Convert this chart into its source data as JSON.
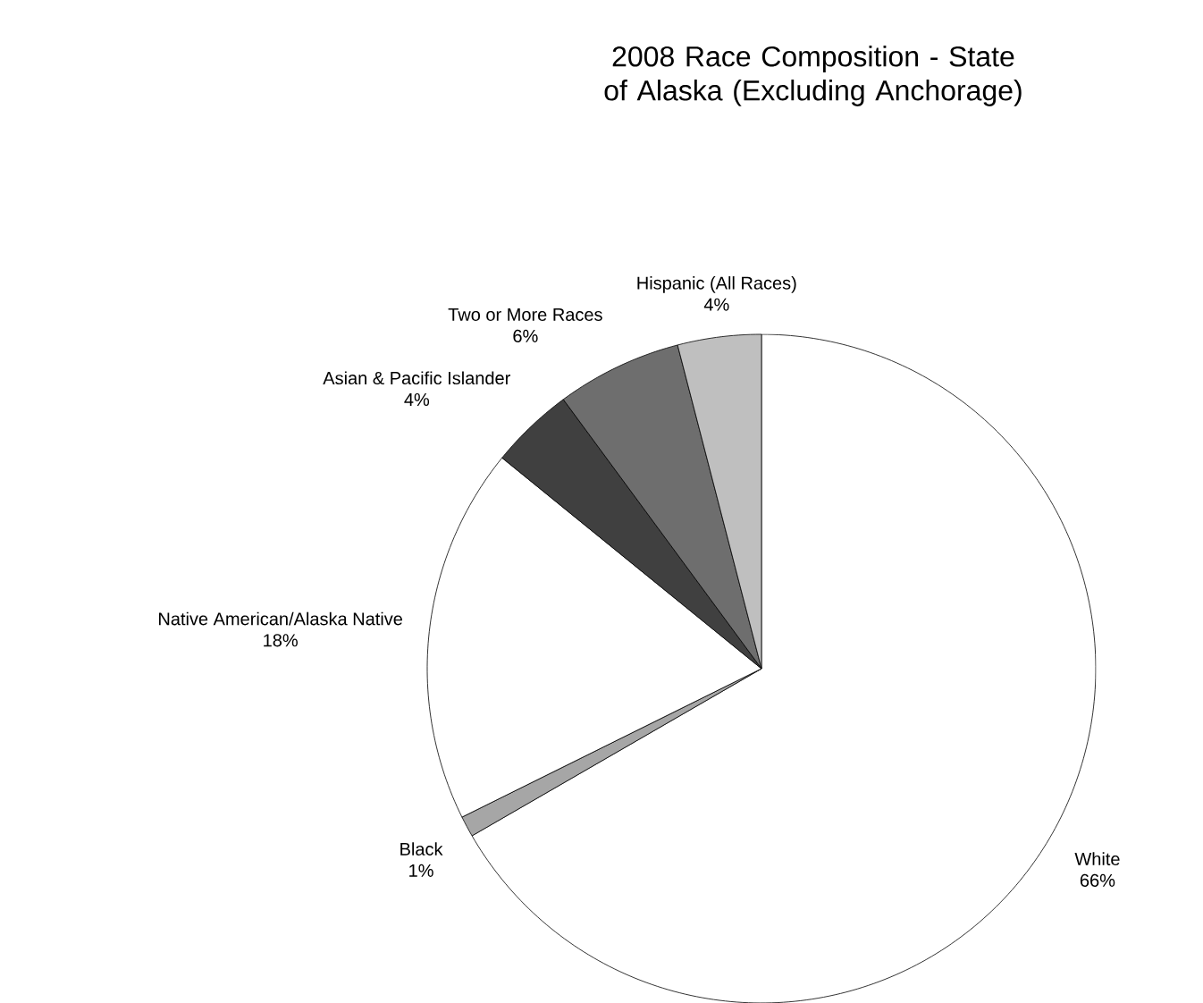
{
  "chart_data": {
    "type": "pie",
    "title": "2008 Race Composition - State of Alaska (Excluding Anchorage)",
    "categories": [
      "White",
      "Black",
      "Native American/Alaska Native",
      "Asian & Pacific Islander",
      "Two or More Races",
      "Hispanic (All Races)"
    ],
    "values": [
      66,
      1,
      18,
      4,
      6,
      4
    ],
    "value_labels": [
      "66%",
      "1%",
      "18%",
      "4%",
      "6%",
      "4%"
    ],
    "colors": [
      "#ffffff",
      "#a6a6a6",
      "#ffffff",
      "#404040",
      "#6e6e6e",
      "#bfbfbf"
    ]
  }
}
